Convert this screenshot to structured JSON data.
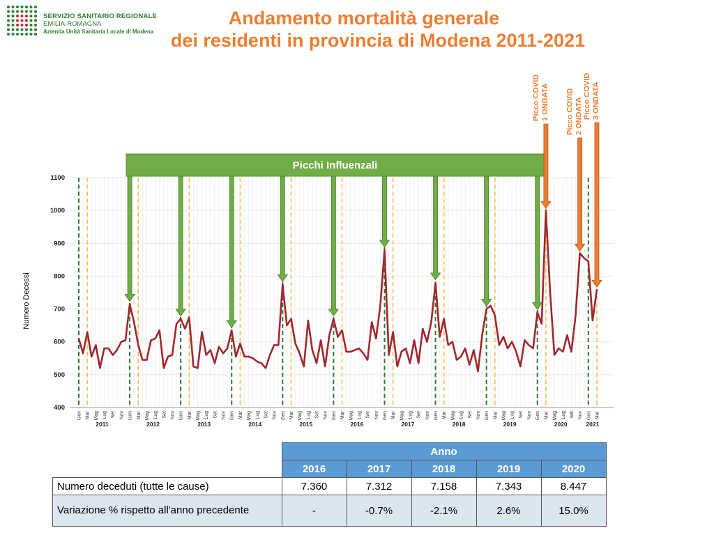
{
  "header": {
    "logo_line1": "SERVIZIO SANITARIO REGIONALE",
    "logo_line2": "EMILIA-ROMAGNA",
    "logo_line3": "Azienda Unità Sanitaria Locale di Modena",
    "title_line1": "Andamento mortalità generale",
    "title_line2": "dei residenti in provincia di Modena 2011-2021"
  },
  "colors": {
    "title": "#ed7d31",
    "series": "#a0272d",
    "flu_banner": "#70ad47",
    "covid_arrow": "#ed7d31",
    "jan_line": "#2e7d32",
    "mar_line": "#f4b940",
    "table_header": "#5b9bd5",
    "table_row_alt": "#dce6f1"
  },
  "chart_data": {
    "type": "line",
    "ylabel": "Numero Decessi",
    "ylim": [
      400,
      1100
    ],
    "yticks": [
      400,
      500,
      600,
      700,
      800,
      900,
      1000,
      1100
    ],
    "month_labels": [
      "Gen",
      "Mar",
      "Mag",
      "Lug",
      "Set",
      "Nov"
    ],
    "years": [
      "2011",
      "2012",
      "2013",
      "2014",
      "2015",
      "2016",
      "2017",
      "2018",
      "2019",
      "2020",
      "2021"
    ],
    "banner": "Picchi Influenzali",
    "annotations": [
      {
        "label_line1": "Picco COVID",
        "label_line2": "1 ONDATA"
      },
      {
        "label_line1": "Picco COVID",
        "label_line2": "2 ONDATA"
      },
      {
        "label_line1": "Picco COVID",
        "label_line2": "3 ONDATA"
      }
    ],
    "series": [
      {
        "values": [
          610,
          565,
          630,
          555,
          590,
          520,
          580,
          580,
          560,
          575,
          600,
          605,
          715,
          660,
          590,
          545,
          545,
          605,
          610,
          635,
          520,
          555,
          560,
          655,
          670,
          640,
          675,
          525,
          520,
          630,
          560,
          575,
          535,
          585,
          565,
          580,
          635,
          555,
          595,
          555,
          555,
          550,
          540,
          535,
          520,
          560,
          590,
          590,
          775,
          650,
          670,
          595,
          565,
          525,
          665,
          575,
          535,
          605,
          525,
          620,
          670,
          615,
          635,
          570,
          570,
          575,
          580,
          565,
          545,
          660,
          610,
          710,
          880,
          560,
          630,
          525,
          570,
          580,
          535,
          605,
          535,
          640,
          600,
          660,
          780,
          615,
          670,
          590,
          600,
          545,
          555,
          580,
          530,
          575,
          510,
          620,
          700,
          710,
          680,
          590,
          615,
          580,
          600,
          570,
          525,
          605,
          590,
          580,
          690,
          655,
          1000,
          750,
          560,
          580,
          570,
          620,
          570,
          680,
          870,
          855,
          845,
          665,
          760
        ]
      }
    ]
  },
  "table": {
    "group_header": "Anno",
    "years": [
      "2016",
      "2017",
      "2018",
      "2019",
      "2020"
    ],
    "rows": [
      {
        "label": "Numero deceduti (tutte le cause)",
        "values": [
          "7.360",
          "7.312",
          "7.158",
          "7.343",
          "8.447"
        ]
      },
      {
        "label": "Variazione % rispetto all'anno precedente",
        "values": [
          "-",
          "-0.7%",
          "-2.1%",
          "2.6%",
          "15.0%"
        ]
      }
    ]
  }
}
